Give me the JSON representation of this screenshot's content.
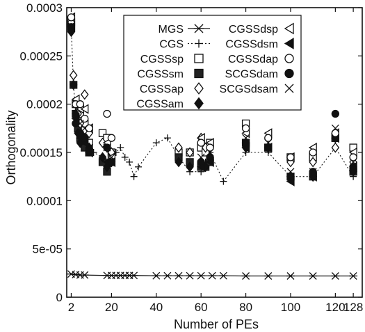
{
  "chart_data": {
    "type": "scatter",
    "title": "",
    "xlabel": "Number of PEs",
    "ylabel": "Orthogonality",
    "xlim": [
      0,
      132
    ],
    "ylim": [
      0,
      0.0003
    ],
    "xticks": [
      2,
      20,
      40,
      60,
      80,
      100,
      120,
      128
    ],
    "xtick_labels": [
      "2",
      "20",
      "40",
      "60",
      "80",
      "100",
      "120",
      "128"
    ],
    "yticks": [
      0,
      5e-05,
      0.0001,
      0.00015,
      0.0002,
      0.00025,
      0.0003
    ],
    "ytick_labels": [
      "0",
      "5e-05",
      "0.0001",
      "0.00015",
      "0.0002",
      "0.00025",
      "0.0003"
    ],
    "grid": false,
    "legend_position": "top",
    "series": [
      {
        "name": "MGS",
        "marker": "star",
        "line": "solid",
        "x": [
          2,
          4,
          6,
          8,
          18,
          20,
          22,
          24,
          26,
          28,
          30,
          40,
          45,
          50,
          55,
          60,
          65,
          70,
          80,
          90,
          100,
          110,
          120,
          128
        ],
        "y": [
          2.4e-05,
          2.35e-05,
          2.3e-05,
          2.3e-05,
          2.25e-05,
          2.25e-05,
          2.25e-05,
          2.25e-05,
          2.25e-05,
          2.25e-05,
          2.25e-05,
          2.22e-05,
          2.22e-05,
          2.22e-05,
          2.22e-05,
          2.22e-05,
          2.22e-05,
          2.22e-05,
          2.2e-05,
          2.2e-05,
          2.2e-05,
          2.2e-05,
          2.2e-05,
          2.2e-05
        ]
      },
      {
        "name": "CGS",
        "marker": "plus",
        "line": "dotted",
        "x": [
          2,
          3,
          4,
          5,
          6,
          8,
          10,
          12,
          16,
          18,
          20,
          22,
          24,
          26,
          28,
          30,
          32,
          40,
          45,
          50,
          55,
          60,
          62,
          64,
          70,
          80,
          90,
          100,
          110,
          120,
          128
        ],
        "y": [
          0.00028,
          0.00022,
          0.00019,
          0.00018,
          0.000165,
          0.000155,
          0.000155,
          0.00015,
          0.000145,
          0.00014,
          0.00014,
          0.00015,
          0.000155,
          0.000145,
          0.00014,
          0.000125,
          0.000135,
          0.00016,
          0.000165,
          0.000145,
          0.00013,
          0.00013,
          0.00014,
          0.00015,
          0.00012,
          0.00015,
          0.00015,
          0.000125,
          0.000125,
          0.000155,
          0.000125
        ]
      },
      {
        "name": "CGSSsp",
        "marker": "open-square",
        "x": [
          2,
          4,
          6,
          8,
          10,
          16,
          18,
          20,
          50,
          55,
          60,
          62,
          64,
          80,
          90,
          100,
          110,
          120,
          128
        ],
        "y": [
          0.000285,
          0.0002,
          0.00019,
          0.00018,
          0.00016,
          0.00017,
          0.000165,
          0.00015,
          0.00015,
          0.00015,
          0.000155,
          0.00015,
          0.00016,
          0.00018,
          0.000155,
          0.000145,
          0.000145,
          0.000165,
          0.000155
        ]
      },
      {
        "name": "CGSSsm",
        "marker": "filled-square",
        "x": [
          2,
          3,
          4,
          5,
          6,
          8,
          10,
          16,
          18,
          20,
          50,
          55,
          60,
          62,
          64,
          80,
          90,
          100,
          110,
          120,
          128
        ],
        "y": [
          0.00028,
          0.00022,
          0.00019,
          0.000175,
          0.000165,
          0.000155,
          0.00015,
          0.00014,
          0.00013,
          0.00014,
          0.000145,
          0.00014,
          0.000135,
          0.000135,
          0.00014,
          0.00016,
          0.000155,
          0.000125,
          0.000125,
          0.000165,
          0.00013
        ]
      },
      {
        "name": "CGSSap",
        "marker": "open-diamond",
        "x": [
          2,
          3,
          4,
          5,
          6,
          8,
          10,
          16,
          18,
          20,
          50,
          55,
          60,
          62,
          64,
          80,
          90,
          100,
          110,
          120,
          128
        ],
        "y": [
          0.000285,
          0.00023,
          0.0002,
          0.00019,
          0.00018,
          0.00021,
          0.00017,
          0.00016,
          0.000155,
          0.00015,
          0.000155,
          0.00015,
          0.000165,
          0.000155,
          0.000155,
          0.00016,
          0.000155,
          0.00014,
          0.00014,
          0.000155,
          0.00014
        ]
      },
      {
        "name": "CGSSam",
        "marker": "filled-diamond",
        "x": [
          2,
          3,
          4,
          5,
          6,
          8,
          10,
          16,
          18,
          20,
          50,
          55,
          60,
          62,
          64,
          80,
          90,
          100,
          110,
          120,
          128
        ],
        "y": [
          0.000275,
          0.00022,
          0.00019,
          0.00017,
          0.00016,
          0.000165,
          0.000155,
          0.000145,
          0.000135,
          0.00014,
          0.00014,
          0.000135,
          0.00014,
          0.000135,
          0.000145,
          0.000155,
          0.000155,
          0.000125,
          0.000125,
          0.000165,
          0.00013
        ]
      },
      {
        "name": "CGSSdsp",
        "marker": "open-triangle-left",
        "x": [
          2,
          4,
          6,
          8,
          10,
          18,
          20,
          60,
          64,
          80,
          90,
          100,
          110,
          120,
          128
        ],
        "y": [
          0.00029,
          0.000205,
          0.000195,
          0.000195,
          0.000175,
          0.00016,
          0.000145,
          0.000165,
          0.00016,
          0.00017,
          0.00017,
          0.000145,
          0.000155,
          0.00017,
          0.00015
        ]
      },
      {
        "name": "CGSSdsm",
        "marker": "filled-triangle-left",
        "x": [
          2,
          4,
          6,
          8,
          10,
          18,
          20,
          60,
          64,
          80,
          90,
          100,
          110,
          120,
          128
        ],
        "y": [
          0.00028,
          0.000185,
          0.000165,
          0.00016,
          0.00015,
          0.00014,
          0.00014,
          0.000135,
          0.00014,
          0.000155,
          0.000155,
          0.00012,
          0.000125,
          0.000165,
          0.000135
        ]
      },
      {
        "name": "CGSSdap",
        "marker": "open-circle",
        "x": [
          2,
          4,
          6,
          8,
          10,
          18,
          20,
          60,
          64,
          80,
          90,
          100,
          110,
          120,
          128
        ],
        "y": [
          0.00029,
          0.0002,
          0.0002,
          0.000185,
          0.000175,
          0.00019,
          0.000165,
          0.00016,
          0.000155,
          0.000175,
          0.000165,
          0.000145,
          0.00015,
          0.00017,
          0.000145
        ]
      },
      {
        "name": "SCGSdam",
        "marker": "filled-circle",
        "x": [
          2,
          4,
          6,
          8,
          10,
          18,
          20,
          60,
          64,
          80,
          90,
          100,
          110,
          120,
          128
        ],
        "y": [
          0.00028,
          0.00018,
          0.00017,
          0.000165,
          0.00015,
          0.000155,
          0.00014,
          0.00014,
          0.000145,
          0.00016,
          0.000155,
          0.000125,
          0.00013,
          0.00019,
          0.000135
        ]
      },
      {
        "name": "SCGSdsam",
        "marker": "x",
        "x": [
          2,
          4,
          6,
          8,
          10,
          18,
          20,
          60,
          64,
          80,
          90,
          100,
          110,
          120,
          128
        ],
        "y": [
          0.00028,
          0.00019,
          0.00018,
          0.000175,
          0.000155,
          0.000155,
          0.000145,
          0.000145,
          0.00015,
          0.000165,
          0.00016,
          0.00013,
          0.00013,
          0.000175,
          0.00014
        ]
      }
    ]
  }
}
